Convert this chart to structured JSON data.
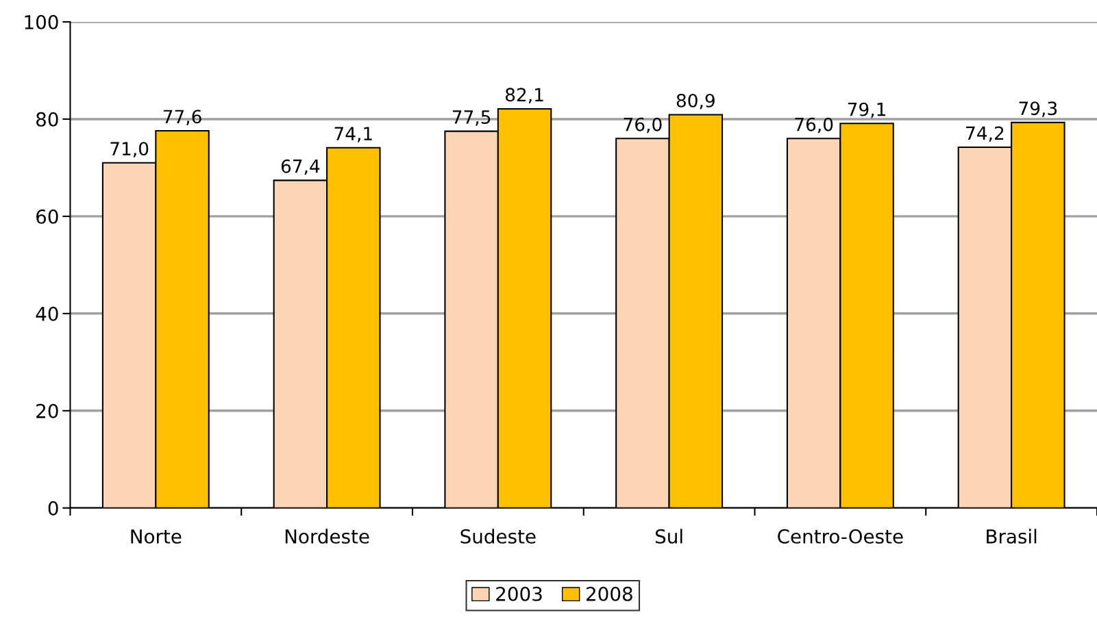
{
  "chart_data": {
    "type": "bar",
    "categories": [
      "Norte",
      "Nordeste",
      "Sudeste",
      "Sul",
      "Centro-Oeste",
      "Brasil"
    ],
    "series": [
      {
        "name": "2003",
        "color": "#fcd5b4",
        "values": [
          71.0,
          67.4,
          77.5,
          76.0,
          76.0,
          74.2
        ],
        "value_labels": [
          "71,0",
          "67,4",
          "77,5",
          "76,0",
          "76,0",
          "74,2"
        ]
      },
      {
        "name": "2008",
        "color": "#ffc000",
        "values": [
          77.6,
          74.1,
          82.1,
          80.9,
          79.1,
          79.3
        ],
        "value_labels": [
          "77,6",
          "74,1",
          "82,1",
          "80,9",
          "79,1",
          "79,3"
        ]
      }
    ],
    "ylim": [
      0,
      100
    ],
    "yticks": [
      0,
      20,
      40,
      60,
      80,
      100
    ],
    "grid": "y",
    "legend": "bottom"
  }
}
